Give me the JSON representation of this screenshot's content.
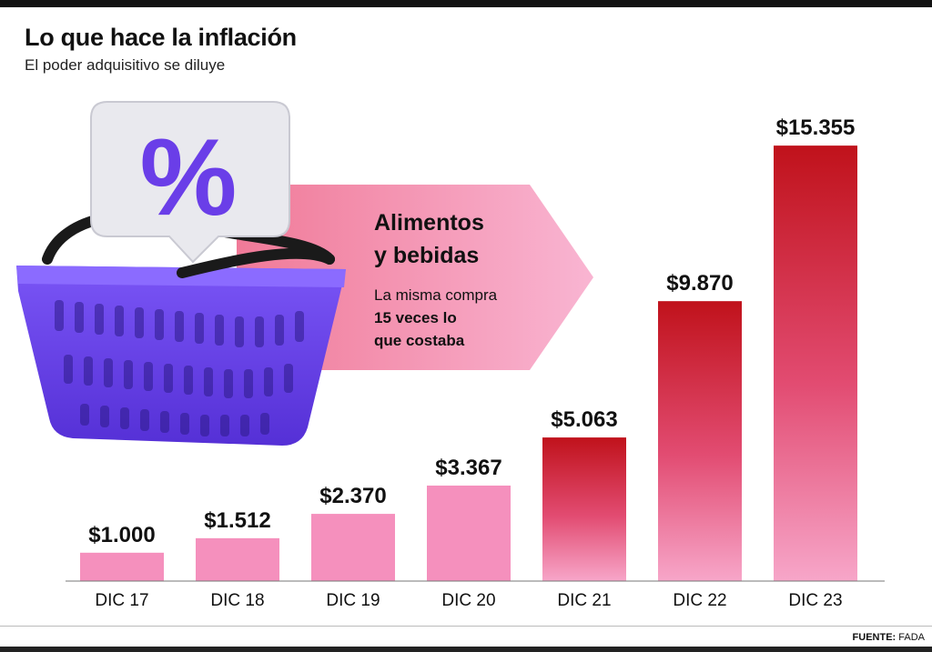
{
  "header": {
    "title": "Lo que hace la inflación",
    "subtitle": "El poder adquisitivo se diluye"
  },
  "callout": {
    "title_line1": "Alimentos",
    "title_line2": "y bebidas",
    "text_line1": "La misma compra",
    "text_line2": "15 veces lo",
    "text_line3": "que costaba",
    "badge_symbol": "%"
  },
  "footer": {
    "source_label": "FUENTE:",
    "source_value": "FADA"
  },
  "colors": {
    "bar_top_dark": "#c0121b",
    "bar_bottom_light": "#f7a6c9",
    "bar_low": "#f590bd",
    "callout_arrow": "#f7a9c8",
    "basket": "#6b45f0",
    "badge_symbol": "#6a3ee8"
  },
  "chart_data": {
    "type": "bar",
    "title": "Lo que hace la inflación",
    "subtitle": "El poder adquisitivo se diluye",
    "categories": [
      "DIC 17",
      "DIC 18",
      "DIC 19",
      "DIC 20",
      "DIC 21",
      "DIC 22",
      "DIC 23"
    ],
    "values": [
      1000,
      1512,
      2370,
      3367,
      5063,
      9870,
      15355
    ],
    "value_labels": [
      "$1.000",
      "$1.512",
      "$2.370",
      "$3.367",
      "$5.063",
      "$9.870",
      "$15.355"
    ],
    "xlabel": "",
    "ylabel": "",
    "ylim": [
      0,
      16000
    ],
    "grid": false,
    "legend": "none"
  }
}
